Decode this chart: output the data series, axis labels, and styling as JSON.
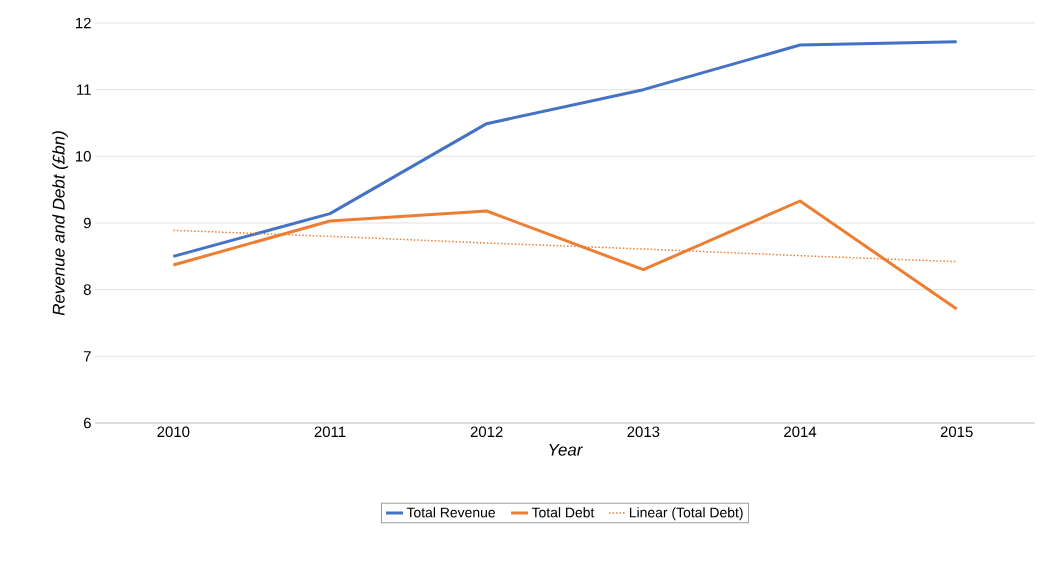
{
  "chart_data": {
    "type": "line",
    "xlabel": "Year",
    "ylabel": "Revenue and Debt (£bn)",
    "categories": [
      "2010",
      "2011",
      "2012",
      "2013",
      "2014",
      "2015"
    ],
    "series": [
      {
        "name": "Total Revenue",
        "color": "#4472c4",
        "line_style": "solid",
        "values": [
          8.5,
          9.14,
          10.49,
          11.0,
          11.67,
          11.72
        ]
      },
      {
        "name": "Total Debt",
        "color": "#ed7d31",
        "line_style": "solid",
        "values": [
          8.37,
          9.03,
          9.18,
          8.3,
          9.33,
          7.71
        ]
      },
      {
        "name": "Linear (Total Debt)",
        "color": "#ed7d31",
        "line_style": "dotted",
        "values": [
          8.89,
          8.8,
          8.7,
          8.61,
          8.51,
          8.42
        ]
      }
    ],
    "ylim": [
      6,
      12
    ],
    "yticks": [
      6,
      7,
      8,
      9,
      10,
      11,
      12
    ],
    "grid": "y",
    "legend": "bottom"
  }
}
